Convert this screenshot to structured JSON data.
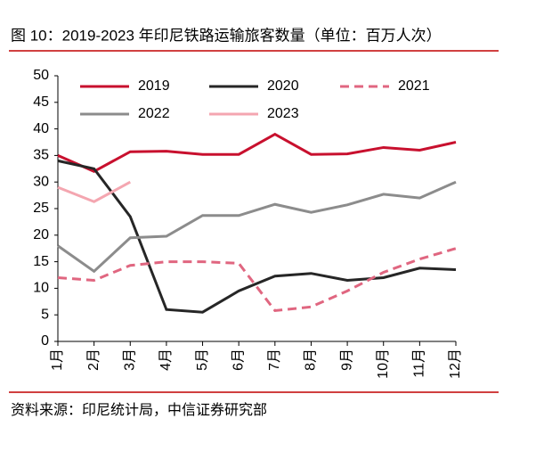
{
  "chart_data": {
    "type": "line",
    "title": "图 10：2019-2023 年印尼铁路运输旅客数量（单位：百万人次）",
    "source": "资料来源：印尼统计局，中信证券研究部",
    "categories": [
      "1月",
      "2月",
      "3月",
      "4月",
      "5月",
      "6月",
      "7月",
      "8月",
      "9月",
      "10月",
      "11月",
      "12月"
    ],
    "series": [
      {
        "name": "2019",
        "color": "#c8102e",
        "dash": false,
        "values": [
          35,
          32,
          35.7,
          35.8,
          35.2,
          35.2,
          39,
          35.2,
          35.3,
          36.5,
          36,
          37.5
        ]
      },
      {
        "name": "2020",
        "color": "#262626",
        "dash": false,
        "values": [
          34,
          32.5,
          23.5,
          6,
          5.5,
          9.5,
          12.3,
          12.8,
          11.5,
          12,
          13.8,
          13.5
        ]
      },
      {
        "name": "2021",
        "color": "#e06680",
        "dash": true,
        "values": [
          12,
          11.5,
          14.3,
          15,
          15,
          14.7,
          5.8,
          6.5,
          9.5,
          13,
          15.5,
          17.5
        ]
      },
      {
        "name": "2022",
        "color": "#8c8c8c",
        "dash": false,
        "values": [
          18,
          13.2,
          19.5,
          19.8,
          23.7,
          23.7,
          25.8,
          24.3,
          25.7,
          27.7,
          27,
          30
        ]
      },
      {
        "name": "2023",
        "color": "#f4a6b0",
        "dash": false,
        "values": [
          29,
          26.3,
          30,
          null,
          null,
          null,
          null,
          null,
          null,
          null,
          null,
          null
        ]
      }
    ],
    "ylim": [
      0,
      50
    ],
    "yticks": [
      0,
      5,
      10,
      15,
      20,
      25,
      30,
      35,
      40,
      45,
      50
    ]
  }
}
